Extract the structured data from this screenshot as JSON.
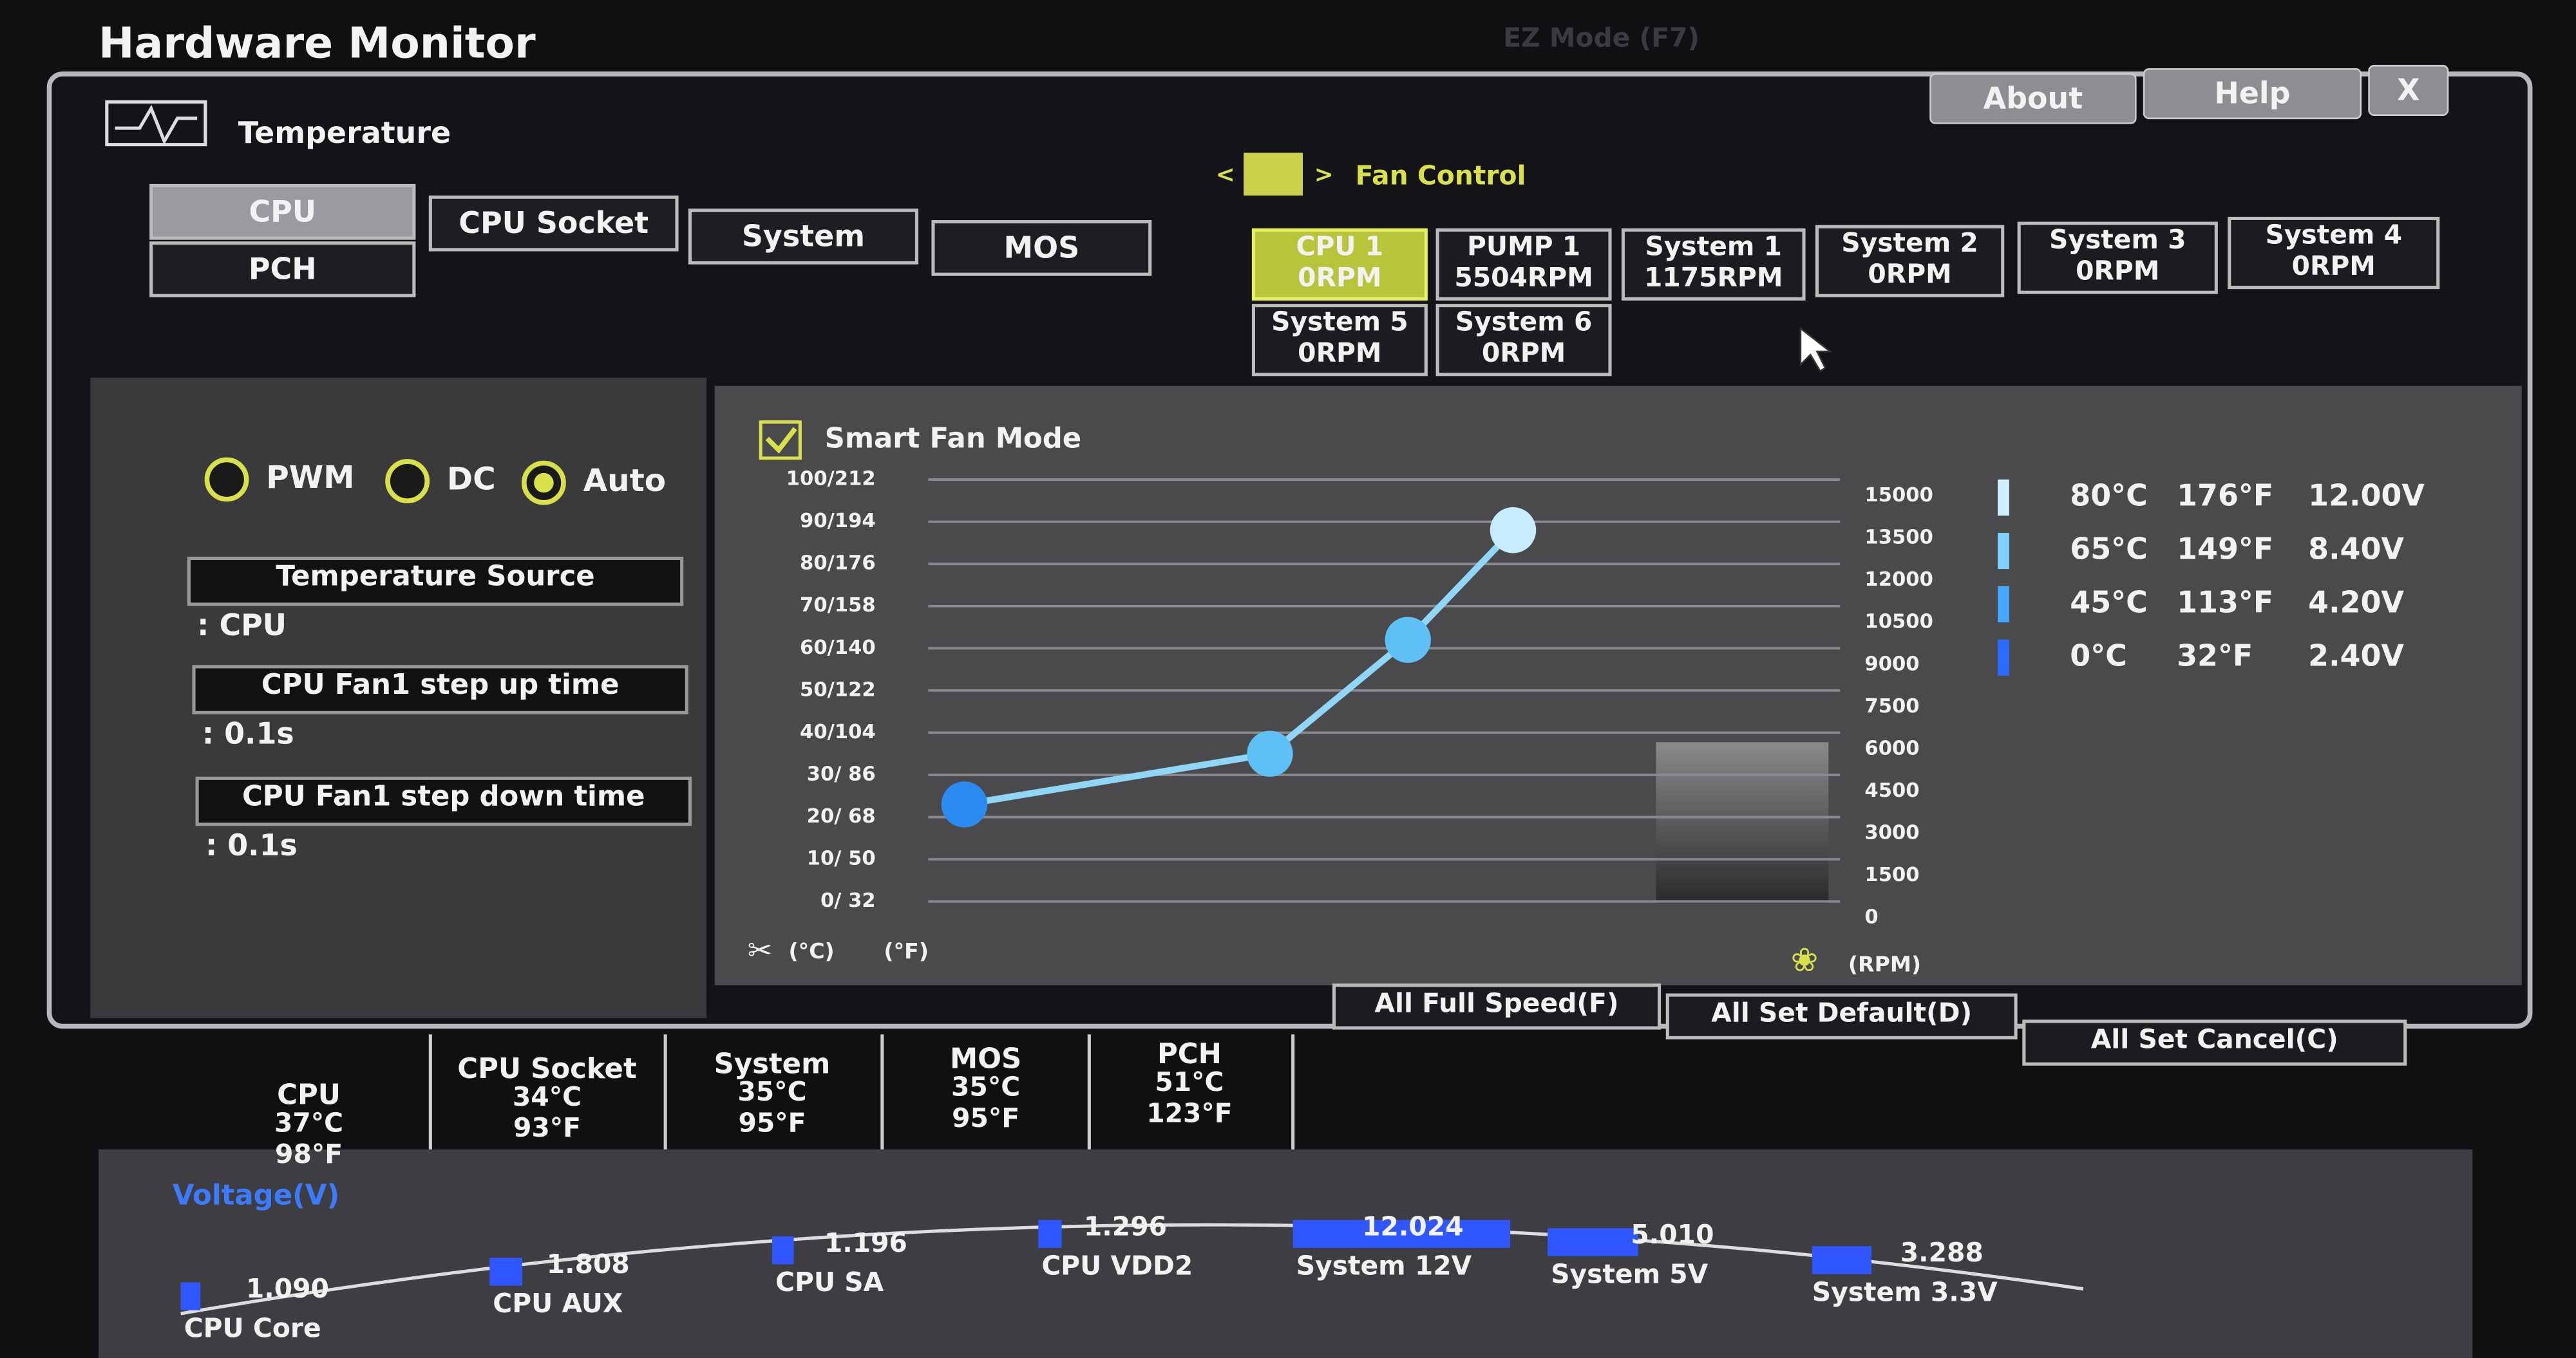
{
  "header": {
    "title": "Hardware Monitor",
    "ez_mode": "EZ Mode (F7)",
    "buttons": [
      "About",
      "Help",
      "X"
    ]
  },
  "temperature": {
    "title": "Temperature",
    "tabs": [
      "CPU",
      "CPU Socket",
      "System",
      "MOS",
      "PCH"
    ],
    "selected_tab": 0
  },
  "fan_control": {
    "title": "Fan Control",
    "selected_fan": 0,
    "fans": [
      {
        "name": "CPU 1",
        "speed": "0RPM"
      },
      {
        "name": "PUMP 1",
        "speed": "5504RPM"
      },
      {
        "name": "System 1",
        "speed": "1175RPM"
      },
      {
        "name": "System 2",
        "speed": "0RPM"
      },
      {
        "name": "System 3",
        "speed": "0RPM"
      },
      {
        "name": "System 4",
        "speed": "0RPM"
      },
      {
        "name": "System 5",
        "speed": "0RPM"
      },
      {
        "name": "System 6",
        "speed": "0RPM"
      }
    ]
  },
  "settings": {
    "modes": [
      "PWM",
      "DC",
      "Auto"
    ],
    "selected_mode": 2,
    "fields": [
      {
        "label": "Temperature Source",
        "value": ": CPU"
      },
      {
        "label": "CPU Fan1 step up time",
        "value": ": 0.1s"
      },
      {
        "label": "CPU Fan1 step down time",
        "value": ": 0.1s"
      }
    ]
  },
  "chart_data": {
    "type": "line",
    "title": "Smart Fan Mode",
    "checked": true,
    "values": [
      23,
      35,
      62,
      88
    ],
    "color": "#8fd6f7",
    "ylim": [
      0,
      100
    ],
    "yticks": [
      {
        "value": 100,
        "label": "100/212"
      },
      {
        "value": 90,
        "label": "90/194"
      },
      {
        "value": 80,
        "label": "80/176"
      },
      {
        "value": 70,
        "label": "70/158"
      },
      {
        "value": 60,
        "label": "60/140"
      },
      {
        "value": 50,
        "label": "50/122"
      },
      {
        "value": 40,
        "label": "40/104"
      },
      {
        "value": 30,
        "label": "30/ 86"
      },
      {
        "value": 20,
        "label": "20/ 68"
      },
      {
        "value": 10,
        "label": "10/ 50"
      },
      {
        "value": 0,
        "label": "0/ 32"
      }
    ],
    "y2lim": [
      0,
      15000
    ],
    "y2ticks": [
      15000,
      13500,
      12000,
      10500,
      9000,
      7500,
      6000,
      4500,
      3000,
      1500,
      0
    ],
    "y_units": [
      "(°C)",
      "(°F)"
    ],
    "y2_unit": "(RPM)",
    "grid": true
  },
  "curve_legend": {
    "rows": [
      [
        "80°C",
        "176°F",
        "12.00V"
      ],
      [
        "65°C",
        "149°F",
        "8.40V"
      ],
      [
        "45°C",
        "113°F",
        "4.20V"
      ],
      [
        "0°C",
        "32°F",
        "2.40V"
      ]
    ]
  },
  "actions": [
    "All Full Speed(F)",
    "All Set Default(D)",
    "All Set Cancel(C)"
  ],
  "temperatures": [
    {
      "name": "CPU",
      "celsius": "37°C",
      "fahrenheit": "98°F"
    },
    {
      "name": "CPU Socket",
      "celsius": "34°C",
      "fahrenheit": "93°F"
    },
    {
      "name": "System",
      "celsius": "35°C",
      "fahrenheit": "95°F"
    },
    {
      "name": "MOS",
      "celsius": "35°C",
      "fahrenheit": "95°F"
    },
    {
      "name": "PCH",
      "celsius": "51°C",
      "fahrenheit": "123°F"
    }
  ],
  "voltage": {
    "title": "Voltage(V)",
    "items": [
      {
        "name": "CPU Core",
        "value": 1.09,
        "label": "1.090"
      },
      {
        "name": "CPU AUX",
        "value": 1.808,
        "label": "1.808"
      },
      {
        "name": "CPU SA",
        "value": 1.196,
        "label": "1.196"
      },
      {
        "name": "CPU VDD2",
        "value": 1.296,
        "label": "1.296"
      },
      {
        "name": "System 12V",
        "value": 12.024,
        "label": "12.024"
      },
      {
        "name": "System 5V",
        "value": 5.01,
        "label": "5.010"
      },
      {
        "name": "System 3.3V",
        "value": 3.288,
        "label": "3.288"
      }
    ]
  }
}
